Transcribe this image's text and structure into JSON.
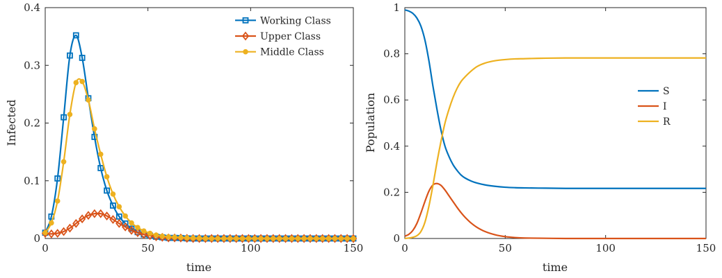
{
  "chart_data": [
    {
      "type": "line",
      "xlabel": "time",
      "ylabel": "Infected",
      "xlim": [
        0,
        150
      ],
      "ylim": [
        0,
        0.4
      ],
      "xticks": [
        "0",
        "50",
        "100",
        "150"
      ],
      "yticks": [
        "0",
        "0.1",
        "0.2",
        "0.3",
        "0.4"
      ],
      "grid": false,
      "legend_position": "top-right",
      "series": [
        {
          "name": "Working Class",
          "color": "#0072BD",
          "marker": "square",
          "x": [
            0,
            3,
            6,
            9,
            12,
            15,
            18,
            21,
            24,
            27,
            30,
            33,
            36,
            39,
            42,
            45,
            48,
            51,
            54,
            57,
            60,
            65,
            70,
            80,
            90,
            100,
            110,
            120,
            130,
            140,
            150
          ],
          "y": [
            0.01,
            0.038,
            0.104,
            0.21,
            0.317,
            0.352,
            0.313,
            0.243,
            0.176,
            0.122,
            0.083,
            0.057,
            0.038,
            0.026,
            0.017,
            0.011,
            0.007,
            0.005,
            0.003,
            0.002,
            0.001,
            0.001,
            0.0,
            0.0,
            0.0,
            0.0,
            0.0,
            0.0,
            0.0,
            0.0,
            0.0
          ]
        },
        {
          "name": "Upper Class",
          "color": "#D95319",
          "marker": "diamond",
          "x": [
            0,
            3,
            6,
            9,
            12,
            15,
            18,
            21,
            24,
            27,
            30,
            33,
            36,
            39,
            42,
            45,
            48,
            51,
            54,
            57,
            60,
            65,
            70,
            80,
            90,
            100,
            110,
            120,
            130,
            140,
            150
          ],
          "y": [
            0.009,
            0.008,
            0.009,
            0.012,
            0.018,
            0.026,
            0.034,
            0.04,
            0.043,
            0.043,
            0.039,
            0.033,
            0.026,
            0.02,
            0.014,
            0.01,
            0.007,
            0.005,
            0.003,
            0.002,
            0.001,
            0.001,
            0.0,
            0.0,
            0.0,
            0.0,
            0.0,
            0.0,
            0.0,
            0.0,
            0.0
          ]
        },
        {
          "name": "Middle Class",
          "color": "#EDB120",
          "marker": "circle",
          "x": [
            0,
            3,
            6,
            9,
            12,
            15,
            18,
            21,
            24,
            27,
            30,
            33,
            36,
            39,
            42,
            45,
            48,
            51,
            54,
            57,
            60,
            65,
            70,
            80,
            90,
            100,
            110,
            120,
            130,
            140,
            150
          ],
          "y": [
            0.01,
            0.027,
            0.065,
            0.133,
            0.215,
            0.27,
            0.272,
            0.24,
            0.19,
            0.146,
            0.107,
            0.077,
            0.055,
            0.039,
            0.027,
            0.019,
            0.013,
            0.009,
            0.006,
            0.004,
            0.003,
            0.002,
            0.001,
            0.0,
            0.0,
            0.0,
            0.0,
            0.0,
            0.0,
            0.0,
            0.0
          ]
        }
      ]
    },
    {
      "type": "line",
      "xlabel": "time",
      "ylabel": "Population",
      "xlim": [
        0,
        150
      ],
      "ylim": [
        0,
        1
      ],
      "xticks": [
        "0",
        "50",
        "100",
        "150"
      ],
      "yticks": [
        "0",
        "0.2",
        "0.4",
        "0.6",
        "0.8",
        "1"
      ],
      "grid": false,
      "legend_position": "right",
      "series": [
        {
          "name": "S",
          "color": "#0072BD",
          "x": [
            0,
            2,
            4,
            6,
            8,
            10,
            12,
            14,
            16,
            18,
            20,
            22,
            24,
            26,
            28,
            30,
            33,
            36,
            40,
            45,
            50,
            55,
            60,
            70,
            80,
            90,
            100,
            110,
            120,
            130,
            140,
            150
          ],
          "y": [
            0.99,
            0.985,
            0.975,
            0.955,
            0.92,
            0.86,
            0.77,
            0.66,
            0.56,
            0.47,
            0.4,
            0.355,
            0.32,
            0.295,
            0.275,
            0.262,
            0.249,
            0.24,
            0.232,
            0.226,
            0.222,
            0.22,
            0.219,
            0.218,
            0.217,
            0.217,
            0.217,
            0.217,
            0.217,
            0.217,
            0.217,
            0.217
          ]
        },
        {
          "name": "I",
          "color": "#D95319",
          "x": [
            0,
            2,
            4,
            6,
            8,
            10,
            12,
            14,
            16,
            18,
            20,
            22,
            24,
            26,
            28,
            30,
            33,
            36,
            40,
            45,
            50,
            55,
            60,
            70,
            80,
            90,
            100,
            110,
            120,
            130,
            140,
            150
          ],
          "y": [
            0.01,
            0.018,
            0.035,
            0.065,
            0.11,
            0.16,
            0.205,
            0.232,
            0.238,
            0.23,
            0.21,
            0.185,
            0.16,
            0.135,
            0.112,
            0.092,
            0.067,
            0.048,
            0.03,
            0.016,
            0.008,
            0.004,
            0.002,
            0.001,
            0.0,
            0.0,
            0.0,
            0.0,
            0.0,
            0.0,
            0.0,
            0.0
          ]
        },
        {
          "name": "R",
          "color": "#EDB120",
          "x": [
            0,
            2,
            4,
            6,
            8,
            10,
            12,
            14,
            16,
            18,
            20,
            22,
            24,
            26,
            28,
            30,
            33,
            36,
            40,
            45,
            50,
            55,
            60,
            70,
            80,
            90,
            100,
            110,
            120,
            130,
            140,
            150
          ],
          "y": [
            0.0,
            0.002,
            0.005,
            0.012,
            0.03,
            0.07,
            0.14,
            0.23,
            0.33,
            0.42,
            0.5,
            0.56,
            0.61,
            0.65,
            0.68,
            0.7,
            0.725,
            0.745,
            0.76,
            0.77,
            0.775,
            0.778,
            0.779,
            0.781,
            0.782,
            0.782,
            0.782,
            0.782,
            0.782,
            0.782,
            0.782,
            0.782
          ]
        }
      ]
    }
  ]
}
